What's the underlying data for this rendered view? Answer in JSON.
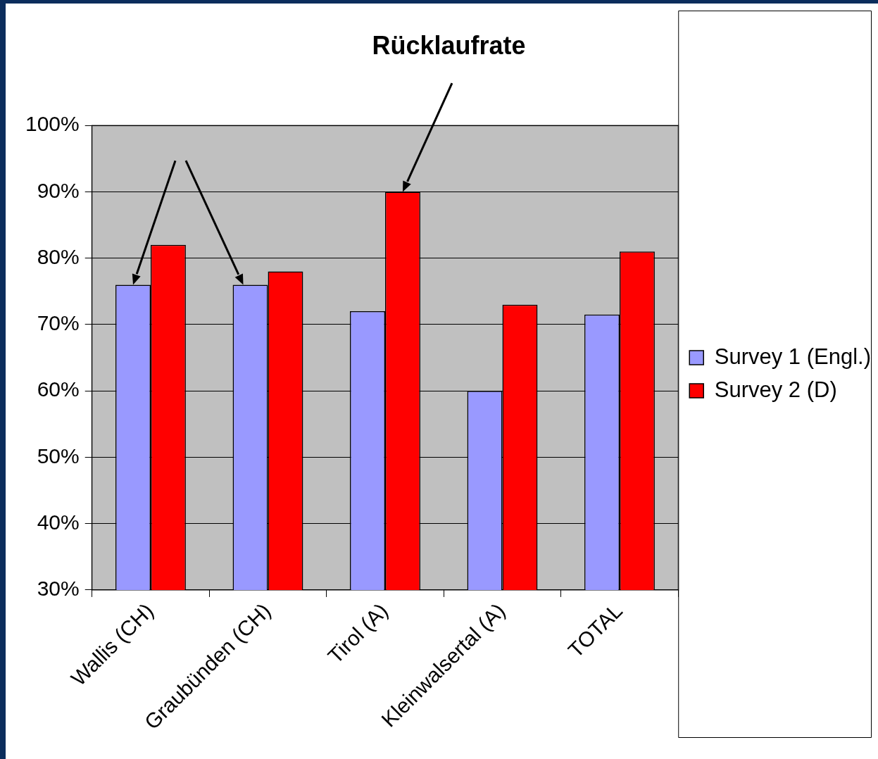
{
  "chart_data": {
    "type": "bar",
    "title": "Rücklaufrate",
    "categories": [
      "Wallis (CH)",
      "Graubünden (CH)",
      "Tirol (A)",
      "Kleinwalsertal (A)",
      "TOTAL"
    ],
    "series": [
      {
        "name": "Survey 1 (Engl.)",
        "color": "#9999ff",
        "values": [
          76,
          76,
          72,
          60,
          71.5
        ]
      },
      {
        "name": "Survey 2 (D)",
        "color": "#ff0000",
        "values": [
          82,
          78,
          90,
          73,
          81
        ]
      }
    ],
    "ylim": [
      30,
      100
    ],
    "yticks": [
      {
        "value": 30,
        "label": "30%"
      },
      {
        "value": 40,
        "label": "40%"
      },
      {
        "value": 50,
        "label": "50%"
      },
      {
        "value": 60,
        "label": "60%"
      },
      {
        "value": 70,
        "label": "70%"
      },
      {
        "value": 80,
        "label": "80%"
      },
      {
        "value": 90,
        "label": "90%"
      },
      {
        "value": 100,
        "label": "100%"
      }
    ],
    "grid": "y",
    "legend": "right"
  }
}
